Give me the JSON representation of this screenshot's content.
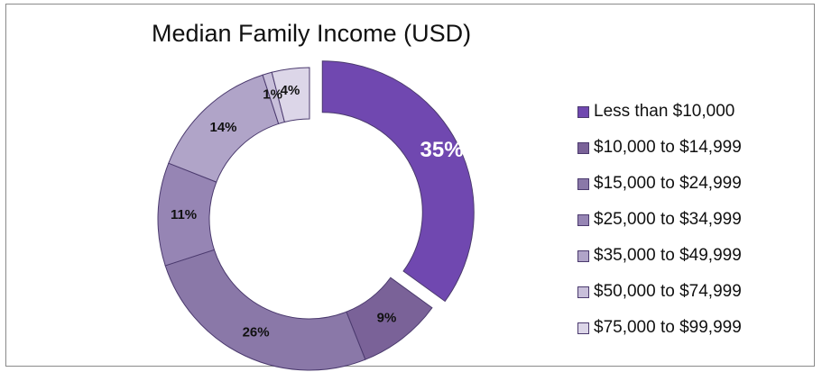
{
  "chart_data": {
    "type": "pie",
    "variant": "doughnut",
    "title": "Median Family Income (USD)",
    "categories": [
      "Less than $10,000",
      "$10,000 to $14,999",
      "$15,000 to $24,999",
      "$25,000 to $34,999",
      "$35,000 to $49,999",
      "$50,000 to $74,999",
      "$75,000 to $99,999"
    ],
    "values": [
      35,
      9,
      26,
      11,
      14,
      1,
      4
    ],
    "data_labels": [
      "35%",
      "9%",
      "26%",
      "11%",
      "14%",
      "1%",
      "4%"
    ],
    "exploded_slice": "Less than $10,000",
    "colors": [
      "#7048b0",
      "#7a6298",
      "#8a78a8",
      "#9685b4",
      "#b0a4c8",
      "#c8bfda",
      "#dcd6e8"
    ],
    "legend_position": "right"
  }
}
